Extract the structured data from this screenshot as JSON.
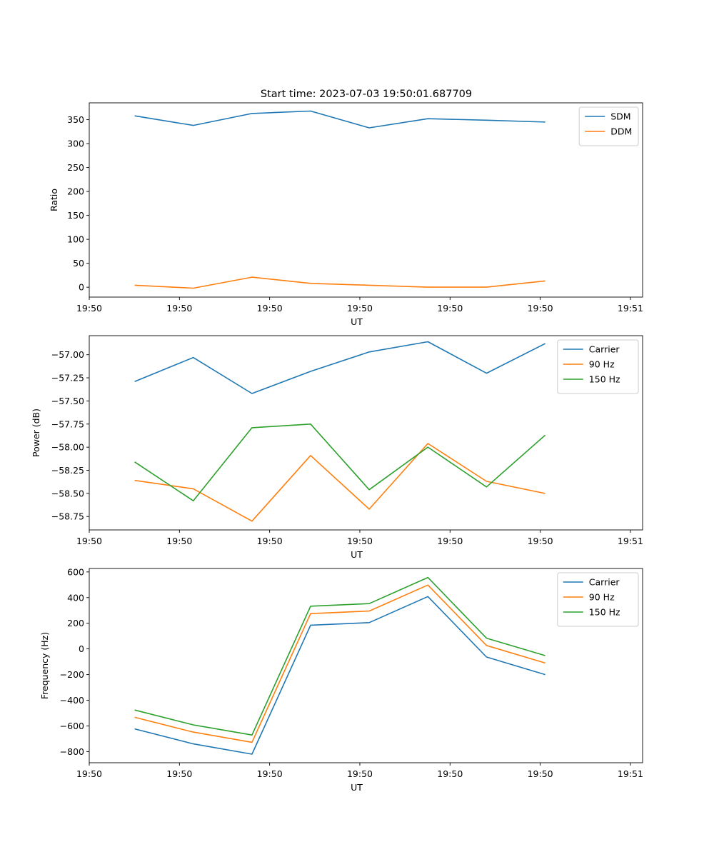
{
  "figure_title": "Start time: 2023-07-03 19:50:01.687709",
  "colors": {
    "blue": "#1f77b4",
    "orange": "#ff7f0e",
    "green": "#2ca02c",
    "axis": "#000000",
    "legend_border": "#cccccc"
  },
  "chart_data": [
    {
      "type": "line",
      "title": "Start time: 2023-07-03 19:50:01.687709",
      "xlabel": "UT",
      "ylabel": "Ratio",
      "xlim": [
        0.0,
        1.0
      ],
      "ylim": [
        -20.7,
        385.2
      ],
      "x": [
        0.082,
        0.188,
        0.294,
        0.4,
        0.506,
        0.612,
        0.718,
        0.824
      ],
      "xticks": [
        0.0,
        0.163,
        0.326,
        0.489,
        0.652,
        0.815,
        0.978
      ],
      "xtick_labels": [
        "19:50",
        "19:50",
        "19:50",
        "19:50",
        "19:50",
        "19:50",
        "19:51"
      ],
      "yticks": [
        0,
        50,
        100,
        150,
        200,
        250,
        300,
        350
      ],
      "ytick_labels": [
        "0",
        "50",
        "100",
        "150",
        "200",
        "250",
        "300",
        "350"
      ],
      "legend_position": "top-right",
      "series": [
        {
          "name": "SDM",
          "color": "#1f77b4",
          "values": [
            358,
            338,
            363,
            368,
            333,
            352,
            349,
            345
          ]
        },
        {
          "name": "DDM",
          "color": "#ff7f0e",
          "values": [
            4,
            -2,
            21,
            8,
            4,
            0,
            0,
            13
          ]
        }
      ]
    },
    {
      "type": "line",
      "xlabel": "UT",
      "ylabel": "Power (dB)",
      "xlim": [
        0.0,
        1.0
      ],
      "ylim": [
        -58.895,
        -56.794
      ],
      "x": [
        0.082,
        0.188,
        0.294,
        0.4,
        0.506,
        0.612,
        0.718,
        0.824
      ],
      "xticks": [
        0.0,
        0.163,
        0.326,
        0.489,
        0.652,
        0.815,
        0.978
      ],
      "xtick_labels": [
        "19:50",
        "19:50",
        "19:50",
        "19:50",
        "19:50",
        "19:50",
        "19:51"
      ],
      "yticks": [
        -57.0,
        -57.25,
        -57.5,
        -57.75,
        -58.0,
        -58.25,
        -58.5,
        -58.75
      ],
      "ytick_labels": [
        "−57.00",
        "−57.25",
        "−57.50",
        "−57.75",
        "−58.00",
        "−58.25",
        "−58.50",
        "−58.75"
      ],
      "legend_position": "top-right",
      "series": [
        {
          "name": "Carrier",
          "color": "#1f77b4",
          "values": [
            -57.29,
            -57.03,
            -57.42,
            -57.18,
            -56.97,
            -56.86,
            -57.2,
            -56.88
          ]
        },
        {
          "name": "90 Hz",
          "color": "#ff7f0e",
          "values": [
            -58.36,
            -58.45,
            -58.8,
            -58.09,
            -58.67,
            -57.96,
            -58.37,
            -58.5
          ]
        },
        {
          "name": "150 Hz",
          "color": "#2ca02c",
          "values": [
            -58.16,
            -58.58,
            -57.79,
            -57.75,
            -58.46,
            -58.0,
            -58.43,
            -57.87
          ]
        }
      ]
    },
    {
      "type": "line",
      "xlabel": "UT",
      "ylabel": "Frequency (Hz)",
      "xlim": [
        0.0,
        1.0
      ],
      "ylim": [
        -887,
        627
      ],
      "x": [
        0.082,
        0.188,
        0.294,
        0.4,
        0.506,
        0.612,
        0.718,
        0.824
      ],
      "xticks": [
        0.0,
        0.163,
        0.326,
        0.489,
        0.652,
        0.815,
        0.978
      ],
      "xtick_labels": [
        "19:50",
        "19:50",
        "19:50",
        "19:50",
        "19:50",
        "19:50",
        "19:51"
      ],
      "yticks": [
        600,
        400,
        200,
        0,
        -200,
        -400,
        -600,
        -800
      ],
      "ytick_labels": [
        "600",
        "400",
        "200",
        "0",
        "−200",
        "−400",
        "−600",
        "−800"
      ],
      "legend_position": "top-right",
      "series": [
        {
          "name": "Carrier",
          "color": "#1f77b4",
          "values": [
            -623,
            -740,
            -820,
            185,
            205,
            408,
            -63,
            -200
          ]
        },
        {
          "name": "90 Hz",
          "color": "#ff7f0e",
          "values": [
            -533,
            -648,
            -728,
            275,
            295,
            498,
            27,
            -110
          ]
        },
        {
          "name": "150 Hz",
          "color": "#2ca02c",
          "values": [
            -476,
            -592,
            -671,
            333,
            353,
            557,
            84,
            -52
          ]
        }
      ]
    }
  ]
}
